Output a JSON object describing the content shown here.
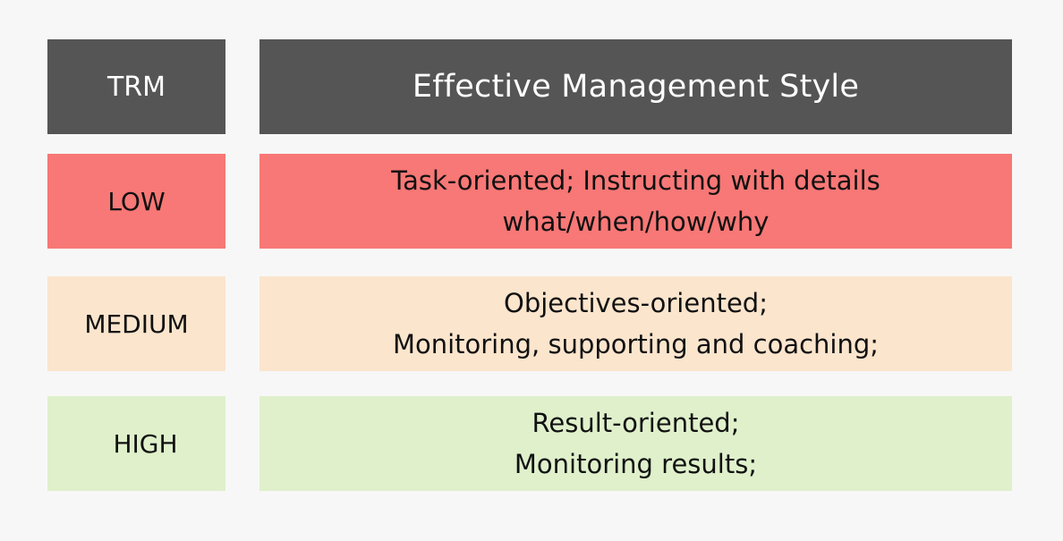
{
  "header": {
    "trm": "TRM",
    "style": "Effective Management Style"
  },
  "rows": [
    {
      "level": "LOW",
      "lines": [
        "Task-oriented; Instructing with details",
        "what/when/how/why"
      ],
      "color": "#f77876"
    },
    {
      "level": "MEDIUM",
      "lines": [
        "Objectives-oriented;",
        "Monitoring, supporting and coaching;"
      ],
      "color": "#fbe5cd"
    },
    {
      "level": "HIGH",
      "lines": [
        "Result-oriented;",
        "Monitoring results;"
      ],
      "color": "#dff0cb"
    }
  ],
  "colors": {
    "header": "#555555",
    "background": "#f7f7f7"
  }
}
